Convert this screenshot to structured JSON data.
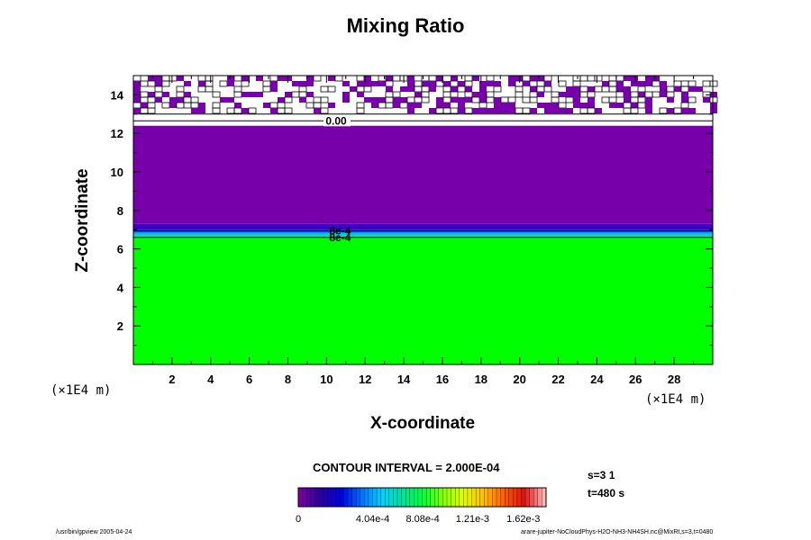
{
  "chart_data": {
    "type": "heatmap",
    "title": "Mixing Ratio",
    "xlabel": "X-coordinate",
    "ylabel": "Z-coordinate",
    "x_unit_left": "(×1E4 m)",
    "x_unit_right": "(×1E4 m)",
    "xlim": [
      0,
      30
    ],
    "ylim": [
      0,
      15
    ],
    "x_ticks": [
      2,
      4,
      6,
      8,
      10,
      12,
      14,
      16,
      18,
      20,
      22,
      24,
      26,
      28
    ],
    "y_ticks": [
      2,
      4,
      6,
      8,
      10,
      12,
      14
    ],
    "layers": [
      {
        "z_from": 0,
        "z_to": 6.6,
        "value": 0.001,
        "color": "#00ff00"
      },
      {
        "z_from": 6.6,
        "z_to": 6.75,
        "value": 0.0008,
        "color": "#00e0a0"
      },
      {
        "z_from": 6.75,
        "z_to": 6.85,
        "value": 0.0006,
        "color": "#00b4ff"
      },
      {
        "z_from": 6.85,
        "z_to": 7.0,
        "value": 0.0004,
        "color": "#0050ff"
      },
      {
        "z_from": 7.0,
        "z_to": 7.3,
        "value": 0.0002,
        "color": "#3c00c8"
      },
      {
        "z_from": 7.3,
        "z_to": 12.4,
        "value": 0.0001,
        "color": "#7700aa"
      },
      {
        "z_from": 12.4,
        "z_to": 13.0,
        "value": 0,
        "color": "#ffffff"
      },
      {
        "z_from": 13.0,
        "z_to": 15.0,
        "value": 0,
        "color": "#ffffff"
      }
    ],
    "contour_labels": [
      {
        "text": "0.00",
        "x": 10.5,
        "z": 12.65
      },
      {
        "text": "8e-4",
        "x": 10.7,
        "z": 6.95
      },
      {
        "text": "8e-4",
        "x": 10.7,
        "z": 6.6
      }
    ],
    "noise_band": {
      "z_from": 13.0,
      "z_to": 15.0,
      "color": "#7700aa"
    },
    "colorbar": {
      "tick_labels": [
        "0",
        "4.04e-4",
        "8.08e-4",
        "1.21e-3",
        "1.62e-3"
      ],
      "tick_values": [
        0,
        0.000404,
        0.000808,
        0.00121,
        0.00162
      ],
      "range": [
        0,
        0.002
      ],
      "colors": [
        "#7a00a0",
        "#2a00a0",
        "#0000e0",
        "#0070ff",
        "#00d0ff",
        "#00e0a0",
        "#00ff40",
        "#80ff00",
        "#e0ff00",
        "#ffc000",
        "#ff6000",
        "#e01010",
        "#ffb4b4"
      ]
    }
  },
  "labels": {
    "contour_interval": "CONTOUR INTERVAL = 2.000E-04",
    "s_info": "s=3 1",
    "t_info": "t=480 s",
    "footer_left": "/usr/bin/gpview 2005-04-24",
    "footer_right": "arare-jupiter-NoCloudPhys-H2O-NH3-NH4SH.nc@MixRt,s=3,t=0480"
  }
}
